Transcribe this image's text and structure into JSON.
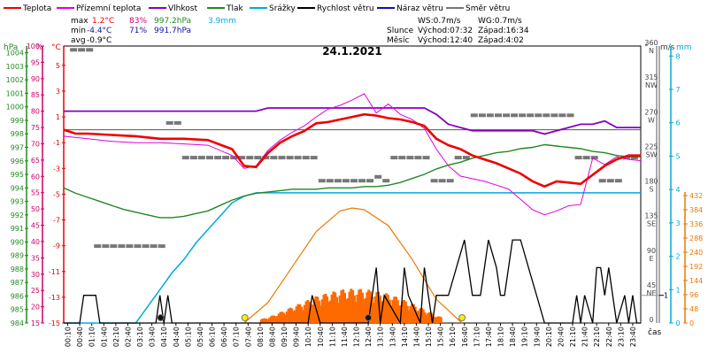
{
  "chart_data": {
    "type": "line",
    "title": "24.1.2021",
    "xlabel": "čas",
    "x_start": "00:00",
    "x_end": "24:00",
    "x_ticks": [
      "00:10",
      "00:40",
      "01:10",
      "01:40",
      "02:10",
      "02:40",
      "03:10",
      "03:40",
      "04:10",
      "04:40",
      "05:10",
      "05:40",
      "06:10",
      "06:40",
      "07:10",
      "07:40",
      "08:10",
      "08:40",
      "09:10",
      "09:40",
      "10:10",
      "10:40",
      "11:10",
      "11:40",
      "12:10",
      "12:40",
      "13:10",
      "13:40",
      "14:10",
      "14:40",
      "15:10",
      "15:40",
      "16:10",
      "16:40",
      "17:10",
      "17:40",
      "18:10",
      "18:40",
      "19:10",
      "19:40",
      "20:10",
      "20:40",
      "21:10",
      "21:40",
      "22:10",
      "22:40",
      "23:10",
      "23:40"
    ],
    "legend": [
      {
        "name": "Teplota",
        "color": "#ee0000"
      },
      {
        "name": "Přízemní teplota",
        "color": "#dd00dd"
      },
      {
        "name": "Vlhkost",
        "color": "#8800bb"
      },
      {
        "name": "Tlak",
        "color": "#228822"
      },
      {
        "name": "Srážky",
        "color": "#00aadd"
      },
      {
        "name": "Rychlost větru",
        "color": "#000000"
      },
      {
        "name": "Náraz větru",
        "color": "#1111aa"
      },
      {
        "name": "Směr větru",
        "color": "#777777"
      }
    ],
    "stats": {
      "max": {
        "label": "max",
        "temp": "1.2°C",
        "hum": "83%",
        "press": "997.2hPa",
        "rain": "3.9mm"
      },
      "min": {
        "label": "min",
        "temp": "-4.4°C",
        "hum": "71%",
        "press": "991.7hPa"
      },
      "avg": {
        "label": "avg",
        "temp": "-0.9°C"
      }
    },
    "info": {
      "ws": "WS:0.7m/s",
      "wg": "WG:0.7m/s",
      "sun_label": "Slunce",
      "sunrise": "Východ:07:32",
      "sunset": "Západ:16:34",
      "moon_label": "Měsíc",
      "moonrise": "Východ:12:40",
      "moonset": "Západ:4:02"
    },
    "axes": {
      "hpa": {
        "label": "hPa",
        "color": "#228822",
        "ticks": [
          "984",
          "985",
          "986",
          "987",
          "988",
          "989",
          "990",
          "991",
          "992",
          "993",
          "994",
          "995",
          "996",
          "997",
          "998",
          "999",
          "1000",
          "1001",
          "1002",
          "1003",
          "1004"
        ],
        "range": [
          984,
          1004.5
        ]
      },
      "pct": {
        "label": "%",
        "color": "#cc0066",
        "ticks": [
          "15",
          "20",
          "25",
          "30",
          "35",
          "40",
          "45",
          "50",
          "55",
          "60",
          "65",
          "70",
          "75",
          "80",
          "85",
          "90",
          "95",
          "100"
        ],
        "range": [
          15,
          100
        ]
      },
      "degc": {
        "label": "°C",
        "color": "#ee0000",
        "ticks": [
          "5",
          "3",
          "1",
          "-1",
          "-3",
          "-5",
          "-7",
          "-9",
          "-11",
          "-13",
          "-15"
        ],
        "range": [
          -15,
          6.5
        ]
      },
      "dir": {
        "label": "°",
        "color": "#444444",
        "ticks": [
          "360",
          "315",
          "270",
          "225",
          "180",
          "135",
          "90",
          "45",
          "0"
        ],
        "compass": [
          "N",
          "NW",
          "W",
          "SW",
          "S",
          "SE",
          "E",
          "NE"
        ],
        "range": [
          0,
          360
        ]
      },
      "ms": {
        "label": "m/s",
        "color": "#444444",
        "ticks": [
          "1"
        ],
        "range": [
          0,
          10
        ]
      },
      "mm": {
        "label": "mm",
        "color": "#00aadd",
        "ticks": [
          "0",
          "1",
          "2",
          "3",
          "4",
          "5",
          "6",
          "7",
          "8"
        ],
        "range": [
          0,
          8.3
        ]
      },
      "wm2": {
        "color": "#ee7700",
        "ticks": [
          "0",
          "48",
          "96",
          "144",
          "192",
          "240",
          "288",
          "336",
          "384",
          "432"
        ],
        "range": [
          0,
          480
        ]
      }
    },
    "series": {
      "temperature": {
        "name": "Teplota",
        "color": "#ee0000",
        "unit": "°C",
        "x": [
          "00:00",
          "00:30",
          "01:00",
          "02:00",
          "03:00",
          "04:00",
          "05:00",
          "06:00",
          "07:00",
          "07:30",
          "08:00",
          "08:30",
          "09:00",
          "09:30",
          "10:00",
          "10:30",
          "11:00",
          "11:30",
          "12:00",
          "12:30",
          "13:00",
          "13:30",
          "14:00",
          "14:30",
          "15:00",
          "15:30",
          "16:00",
          "16:30",
          "17:00",
          "17:30",
          "18:00",
          "18:30",
          "19:00",
          "19:30",
          "20:00",
          "20:30",
          "21:00",
          "21:30",
          "22:00",
          "22:30",
          "23:00",
          "23:30",
          "24:00"
        ],
        "y": [
          0.0,
          -0.3,
          -0.3,
          -0.4,
          -0.5,
          -0.7,
          -0.7,
          -0.8,
          -1.5,
          -2.8,
          -2.9,
          -1.8,
          -1.0,
          -0.5,
          -0.1,
          0.5,
          0.6,
          0.8,
          1.0,
          1.2,
          1.1,
          0.9,
          0.8,
          0.6,
          0.3,
          -0.7,
          -1.2,
          -1.5,
          -2.0,
          -2.3,
          -2.6,
          -3.0,
          -3.4,
          -4.0,
          -4.4,
          -4.0,
          -4.1,
          -4.2,
          -3.5,
          -2.8,
          -2.3,
          -2.0,
          -2.0
        ]
      },
      "ground_temperature": {
        "name": "Přízemní teplota",
        "color": "#dd00dd",
        "unit": "°C",
        "x": [
          "00:00",
          "01:00",
          "02:00",
          "03:00",
          "04:00",
          "05:00",
          "06:00",
          "07:00",
          "07:30",
          "08:00",
          "08:30",
          "09:00",
          "09:30",
          "10:00",
          "10:30",
          "11:00",
          "11:30",
          "12:00",
          "12:30",
          "13:00",
          "13:30",
          "14:00",
          "14:30",
          "15:00",
          "15:30",
          "16:00",
          "16:30",
          "17:00",
          "17:30",
          "18:00",
          "18:30",
          "19:00",
          "19:30",
          "20:00",
          "20:30",
          "21:00",
          "21:30",
          "22:00",
          "22:30",
          "23:00",
          "23:30",
          "24:00"
        ],
        "y": [
          -0.5,
          -0.7,
          -0.9,
          -1.0,
          -1.0,
          -1.1,
          -1.2,
          -2.0,
          -3.0,
          -2.8,
          -1.6,
          -0.8,
          -0.2,
          0.3,
          1.0,
          1.6,
          1.9,
          2.3,
          2.8,
          1.3,
          2.0,
          1.2,
          0.8,
          0.1,
          -1.5,
          -2.8,
          -3.6,
          -3.8,
          -4.0,
          -4.3,
          -4.6,
          -5.4,
          -6.2,
          -6.6,
          -6.3,
          -5.9,
          -5.8,
          -2.2,
          -2.7,
          -2.1,
          -2.3,
          -2.4
        ]
      },
      "humidity": {
        "name": "Vlhkost",
        "color": "#8800bb",
        "unit": "%",
        "x": [
          "00:00",
          "08:00",
          "08:30",
          "09:00",
          "09:30",
          "10:00",
          "15:00",
          "15:30",
          "16:00",
          "16:30",
          "17:00",
          "17:30",
          "18:00",
          "18:30",
          "19:00",
          "19:30",
          "20:00",
          "20:30",
          "21:00",
          "21:30",
          "22:00",
          "22:30",
          "23:00",
          "24:00"
        ],
        "y": [
          80,
          80,
          81,
          81,
          81,
          81,
          81,
          79,
          76,
          75,
          74,
          74,
          74,
          74,
          74,
          74,
          73,
          74,
          75,
          76,
          76,
          77,
          75,
          75
        ]
      },
      "pressure": {
        "name": "Tlak",
        "color": "#228822",
        "unit": "hPa",
        "x": [
          "00:00",
          "00:30",
          "01:00",
          "01:30",
          "02:00",
          "02:30",
          "03:00",
          "03:30",
          "04:00",
          "04:30",
          "05:00",
          "05:30",
          "06:00",
          "06:30",
          "07:00",
          "07:30",
          "08:00",
          "08:30",
          "09:00",
          "09:30",
          "10:00",
          "10:30",
          "11:00",
          "11:30",
          "12:00",
          "12:30",
          "13:00",
          "13:30",
          "14:00",
          "14:30",
          "15:00",
          "15:30",
          "16:00",
          "16:30",
          "17:00",
          "17:30",
          "18:00",
          "18:30",
          "19:00",
          "19:30",
          "20:00",
          "20:30",
          "21:00",
          "21:30",
          "22:00",
          "22:30",
          "23:00",
          "23:30",
          "24:00"
        ],
        "y": [
          994.0,
          993.6,
          993.3,
          993.0,
          992.7,
          992.4,
          992.2,
          992.0,
          991.8,
          991.8,
          991.9,
          992.1,
          992.3,
          992.7,
          993.1,
          993.4,
          993.6,
          993.7,
          993.8,
          993.9,
          993.9,
          993.9,
          994.0,
          994.0,
          994.0,
          994.1,
          994.1,
          994.2,
          994.4,
          994.7,
          995.0,
          995.4,
          995.7,
          995.9,
          996.2,
          996.4,
          996.6,
          996.7,
          996.9,
          997.0,
          997.2,
          997.1,
          997.0,
          996.9,
          996.7,
          996.6,
          996.4,
          996.3,
          996.3
        ]
      },
      "rain": {
        "name": "Srážky",
        "color": "#00aadd",
        "unit": "mm",
        "x": [
          "00:00",
          "03:00",
          "03:30",
          "04:00",
          "04:30",
          "05:00",
          "05:30",
          "06:00",
          "06:30",
          "07:00",
          "07:30",
          "08:00",
          "24:00"
        ],
        "y": [
          0.0,
          0.0,
          0.5,
          1.0,
          1.5,
          1.9,
          2.4,
          2.8,
          3.2,
          3.6,
          3.8,
          3.9,
          3.9
        ]
      },
      "wind_speed": {
        "name": "Rychlost větru",
        "color": "#000000",
        "unit": "m/s",
        "x": [
          "00:00",
          "00:40",
          "00:50",
          "01:20",
          "01:30",
          "03:50",
          "04:00",
          "04:10",
          "04:20",
          "04:30",
          "10:10",
          "10:20",
          "10:40",
          "12:40",
          "12:50",
          "13:00",
          "13:10",
          "13:20",
          "14:00",
          "14:10",
          "14:20",
          "14:50",
          "15:00",
          "15:10",
          "15:20",
          "15:30",
          "15:50",
          "16:00",
          "16:20",
          "16:40",
          "17:00",
          "17:20",
          "17:40",
          "18:00",
          "18:10",
          "18:20",
          "18:40",
          "19:00",
          "19:20",
          "19:40",
          "20:00",
          "21:00",
          "21:10",
          "21:20",
          "21:30",
          "21:40",
          "22:00",
          "22:10",
          "22:20",
          "22:30",
          "22:40",
          "23:00",
          "23:20",
          "23:30",
          "23:40",
          "23:50",
          "24:00"
        ],
        "y": [
          0,
          0,
          1,
          1,
          0,
          0,
          1,
          0,
          1,
          0,
          0,
          1,
          0,
          0,
          1,
          2,
          0,
          1,
          0,
          2,
          1,
          0,
          2,
          1,
          0,
          1,
          1,
          1,
          2,
          3,
          1,
          1,
          3,
          2,
          1,
          1,
          3,
          3,
          2,
          1,
          0,
          0,
          0,
          1,
          0,
          1,
          0,
          2,
          2,
          1,
          2,
          0,
          1,
          0,
          1,
          0,
          0
        ]
      },
      "wind_direction": {
        "name": "Směr větru",
        "color": "#777777",
        "unit": "°",
        "x": [
          "00:20",
          "00:40",
          "01:00",
          "01:20",
          "01:40",
          "02:00",
          "02:20",
          "02:40",
          "03:00",
          "03:20",
          "03:40",
          "04:00",
          "04:20",
          "04:40",
          "05:00",
          "05:20",
          "05:40",
          "06:00",
          "06:20",
          "06:40",
          "07:00",
          "07:20",
          "07:40",
          "08:00",
          "08:20",
          "08:40",
          "09:00",
          "09:20",
          "09:40",
          "10:00",
          "10:20",
          "10:40",
          "11:00",
          "11:20",
          "11:40",
          "12:00",
          "12:20",
          "12:40",
          "13:00",
          "13:20",
          "13:40",
          "14:00",
          "14:20",
          "14:40",
          "15:00",
          "15:20",
          "15:40",
          "16:00",
          "16:20",
          "16:40",
          "17:00",
          "17:20",
          "17:40",
          "18:00",
          "18:20",
          "18:40",
          "19:00",
          "19:20",
          "19:40",
          "20:00",
          "20:20",
          "20:40",
          "21:00",
          "21:20",
          "21:40",
          "22:00",
          "22:20",
          "22:40",
          "23:00",
          "23:20",
          "23:40"
        ],
        "y": [
          355,
          355,
          355,
          100,
          100,
          100,
          100,
          100,
          100,
          100,
          100,
          100,
          260,
          260,
          215,
          215,
          215,
          215,
          215,
          215,
          215,
          215,
          215,
          215,
          215,
          215,
          215,
          215,
          215,
          215,
          215,
          185,
          185,
          185,
          185,
          185,
          185,
          185,
          190,
          185,
          215,
          215,
          215,
          215,
          215,
          185,
          185,
          185,
          215,
          215,
          270,
          270,
          270,
          270,
          270,
          270,
          270,
          270,
          270,
          270,
          270,
          270,
          270,
          215,
          215,
          215,
          185,
          185,
          185,
          215,
          215
        ]
      },
      "solar_radiation": {
        "name": "",
        "color": "#ee7700",
        "unit": "W/m²",
        "x": [
          "07:30",
          "08:30",
          "09:30",
          "10:30",
          "11:30",
          "12:00",
          "12:30",
          "13:30",
          "14:30",
          "15:30",
          "16:34"
        ],
        "y": [
          0,
          70,
          190,
          310,
          380,
          390,
          384,
          330,
          215,
          80,
          0
        ]
      }
    }
  }
}
